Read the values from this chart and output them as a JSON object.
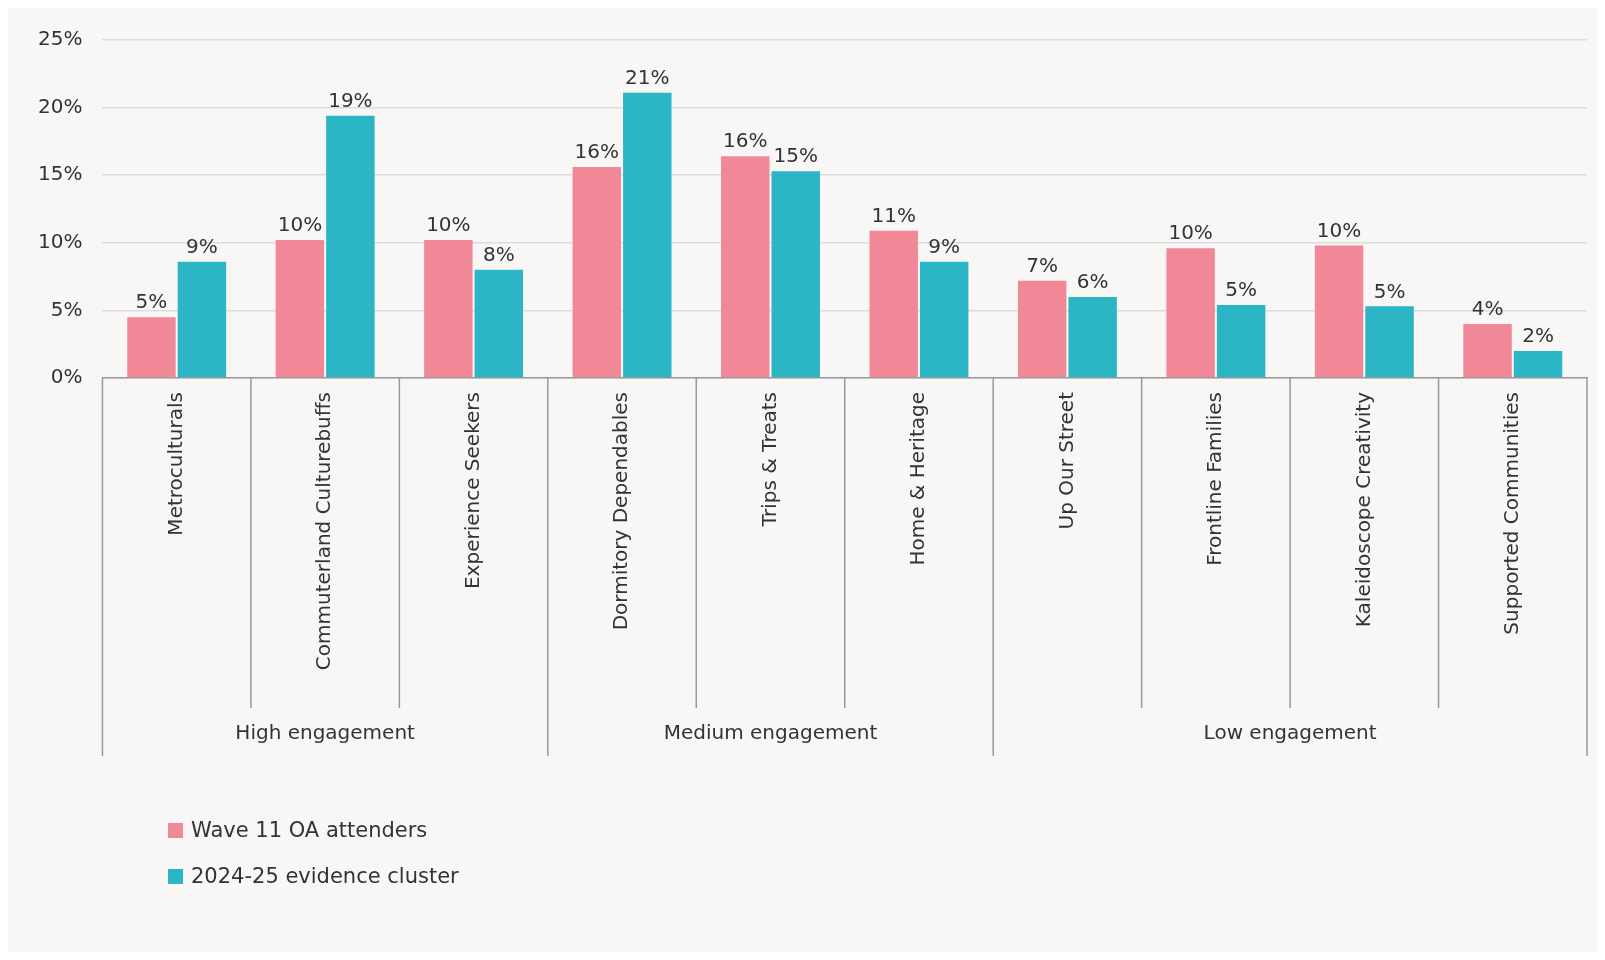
{
  "chart_data": {
    "type": "bar",
    "categories": [
      "Metroculturals",
      "Commuterland Culturebuffs",
      "Experience Seekers",
      "Dormitory Dependables",
      "Trips & Treats",
      "Home & Heritage",
      "Up Our Street",
      "Frontline Families",
      "Kaleidoscope Creativity",
      "Supported Communities"
    ],
    "series": [
      {
        "name": "Wave 11 OA attenders",
        "color": "#f08898",
        "values": [
          4.5,
          10.2,
          10.2,
          15.6,
          16.4,
          10.9,
          7.2,
          9.6,
          9.8,
          4.0
        ],
        "value_labels": [
          "5%",
          "10%",
          "10%",
          "16%",
          "16%",
          "11%",
          "7%",
          "10%",
          "10%",
          "4%"
        ]
      },
      {
        "name": "2024-25 evidence cluster",
        "color": "#2bb5c5",
        "values": [
          8.6,
          19.4,
          8.0,
          21.1,
          15.3,
          8.6,
          6.0,
          5.4,
          5.3,
          2.0
        ],
        "value_labels": [
          "9%",
          "19%",
          "8%",
          "21%",
          "15%",
          "9%",
          "6%",
          "5%",
          "5%",
          "2%"
        ]
      }
    ],
    "ylim": [
      0,
      25
    ],
    "yticks": [
      {
        "value": 0,
        "label": "0%"
      },
      {
        "value": 5,
        "label": "5%"
      },
      {
        "value": 10,
        "label": "10%"
      },
      {
        "value": 15,
        "label": "15%"
      },
      {
        "value": 20,
        "label": "20%"
      },
      {
        "value": 25,
        "label": "25%"
      }
    ],
    "grid": "y",
    "legend": "bottom left",
    "annotations": [
      "High engagement",
      "Medium engagement",
      "Low engagement"
    ]
  }
}
